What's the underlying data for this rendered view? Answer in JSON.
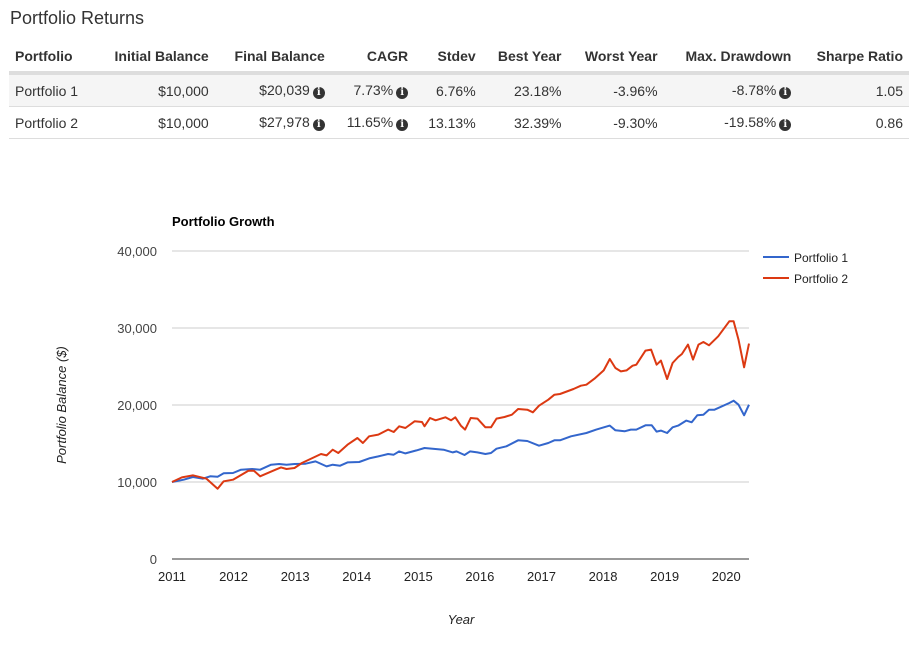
{
  "title": "Portfolio Returns",
  "table": {
    "headers": [
      "Portfolio",
      "Initial Balance",
      "Final Balance",
      "CAGR",
      "Stdev",
      "Best Year",
      "Worst Year",
      "Max. Drawdown",
      "Sharpe Ratio"
    ],
    "rows": [
      [
        "Portfolio 1",
        "$10,000",
        "$20,039",
        "7.73%",
        "6.76%",
        "23.18%",
        "-3.96%",
        "-8.78%",
        "1.05"
      ],
      [
        "Portfolio 2",
        "$10,000",
        "$27,978",
        "11.65%",
        "13.13%",
        "32.39%",
        "-9.30%",
        "-19.58%",
        "0.86"
      ]
    ],
    "info_icon": "info-circle-icon"
  },
  "chart_data": {
    "type": "line",
    "title": "Portfolio Growth",
    "xlabel": "Year",
    "ylabel": "Portfolio Balance ($)",
    "xlim": [
      2011,
      2020.37
    ],
    "ylim": [
      0,
      40000
    ],
    "x_ticks": [
      "2011",
      "2012",
      "2013",
      "2014",
      "2015",
      "2016",
      "2017",
      "2018",
      "2019",
      "2020"
    ],
    "y_ticks": [
      "0",
      "10,000",
      "20,000",
      "30,000",
      "40,000"
    ],
    "grid": true,
    "legend": "right",
    "series": [
      {
        "name": "Portfolio 1",
        "color": "#3366cc",
        "points": [
          [
            2011.0,
            10000
          ],
          [
            2011.19,
            10300
          ],
          [
            2011.34,
            10650
          ],
          [
            2011.5,
            10430
          ],
          [
            2011.62,
            10740
          ],
          [
            2011.74,
            10690
          ],
          [
            2011.84,
            11130
          ],
          [
            2011.99,
            11170
          ],
          [
            2012.12,
            11600
          ],
          [
            2012.3,
            11690
          ],
          [
            2012.43,
            11600
          ],
          [
            2012.61,
            12250
          ],
          [
            2012.74,
            12340
          ],
          [
            2012.86,
            12250
          ],
          [
            2012.99,
            12340
          ],
          [
            2013.17,
            12380
          ],
          [
            2013.33,
            12680
          ],
          [
            2013.51,
            12030
          ],
          [
            2013.61,
            12250
          ],
          [
            2013.73,
            12120
          ],
          [
            2013.85,
            12550
          ],
          [
            2014.04,
            12600
          ],
          [
            2014.2,
            13070
          ],
          [
            2014.35,
            13330
          ],
          [
            2014.51,
            13640
          ],
          [
            2014.6,
            13550
          ],
          [
            2014.69,
            13980
          ],
          [
            2014.79,
            13720
          ],
          [
            2014.97,
            14110
          ],
          [
            2015.1,
            14420
          ],
          [
            2015.41,
            14200
          ],
          [
            2015.56,
            13850
          ],
          [
            2015.62,
            13980
          ],
          [
            2015.75,
            13510
          ],
          [
            2015.84,
            13980
          ],
          [
            2015.96,
            13850
          ],
          [
            2016.09,
            13640
          ],
          [
            2016.18,
            13770
          ],
          [
            2016.27,
            14330
          ],
          [
            2016.43,
            14630
          ],
          [
            2016.62,
            15410
          ],
          [
            2016.77,
            15320
          ],
          [
            2016.96,
            14720
          ],
          [
            2017.11,
            15060
          ],
          [
            2017.21,
            15410
          ],
          [
            2017.3,
            15410
          ],
          [
            2017.48,
            15930
          ],
          [
            2017.73,
            16360
          ],
          [
            2017.89,
            16800
          ],
          [
            2018.11,
            17320
          ],
          [
            2018.2,
            16710
          ],
          [
            2018.35,
            16580
          ],
          [
            2018.45,
            16800
          ],
          [
            2018.54,
            16800
          ],
          [
            2018.69,
            17360
          ],
          [
            2018.79,
            17360
          ],
          [
            2018.87,
            16540
          ],
          [
            2018.94,
            16670
          ],
          [
            2019.04,
            16360
          ],
          [
            2019.13,
            17100
          ],
          [
            2019.22,
            17320
          ],
          [
            2019.35,
            17970
          ],
          [
            2019.44,
            17750
          ],
          [
            2019.53,
            18660
          ],
          [
            2019.63,
            18740
          ],
          [
            2019.72,
            19390
          ],
          [
            2019.81,
            19390
          ],
          [
            2020.05,
            20260
          ],
          [
            2020.12,
            20560
          ],
          [
            2020.2,
            20040
          ],
          [
            2020.29,
            18660
          ],
          [
            2020.37,
            20039
          ]
        ]
      },
      {
        "name": "Portfolio 2",
        "color": "#dc3912",
        "points": [
          [
            2011.0,
            10000
          ],
          [
            2011.16,
            10600
          ],
          [
            2011.34,
            10870
          ],
          [
            2011.56,
            10430
          ],
          [
            2011.74,
            9130
          ],
          [
            2011.84,
            10090
          ],
          [
            2011.99,
            10300
          ],
          [
            2012.24,
            11470
          ],
          [
            2012.33,
            11470
          ],
          [
            2012.43,
            10740
          ],
          [
            2012.68,
            11600
          ],
          [
            2012.77,
            11900
          ],
          [
            2012.86,
            11690
          ],
          [
            2012.99,
            11820
          ],
          [
            2013.11,
            12470
          ],
          [
            2013.42,
            13640
          ],
          [
            2013.51,
            13460
          ],
          [
            2013.61,
            14200
          ],
          [
            2013.7,
            13770
          ],
          [
            2013.85,
            14850
          ],
          [
            2014.01,
            15710
          ],
          [
            2014.1,
            15060
          ],
          [
            2014.2,
            15930
          ],
          [
            2014.35,
            16150
          ],
          [
            2014.51,
            16800
          ],
          [
            2014.6,
            16490
          ],
          [
            2014.69,
            17230
          ],
          [
            2014.79,
            17010
          ],
          [
            2014.94,
            17880
          ],
          [
            2015.06,
            17790
          ],
          [
            2015.1,
            17230
          ],
          [
            2015.19,
            18310
          ],
          [
            2015.28,
            18010
          ],
          [
            2015.44,
            18400
          ],
          [
            2015.53,
            18010
          ],
          [
            2015.6,
            18400
          ],
          [
            2015.69,
            17320
          ],
          [
            2015.76,
            16800
          ],
          [
            2015.85,
            18310
          ],
          [
            2015.96,
            18230
          ],
          [
            2016.09,
            17100
          ],
          [
            2016.18,
            17100
          ],
          [
            2016.27,
            18230
          ],
          [
            2016.4,
            18440
          ],
          [
            2016.52,
            18740
          ],
          [
            2016.62,
            19480
          ],
          [
            2016.77,
            19390
          ],
          [
            2016.86,
            19050
          ],
          [
            2016.96,
            19910
          ],
          [
            2017.11,
            20690
          ],
          [
            2017.21,
            21340
          ],
          [
            2017.3,
            21430
          ],
          [
            2017.52,
            22080
          ],
          [
            2017.64,
            22510
          ],
          [
            2017.73,
            22640
          ],
          [
            2017.86,
            23420
          ],
          [
            2018.01,
            24500
          ],
          [
            2018.11,
            25970
          ],
          [
            2018.2,
            24810
          ],
          [
            2018.29,
            24370
          ],
          [
            2018.38,
            24500
          ],
          [
            2018.48,
            25110
          ],
          [
            2018.54,
            25240
          ],
          [
            2018.69,
            27060
          ],
          [
            2018.78,
            27190
          ],
          [
            2018.87,
            25240
          ],
          [
            2018.94,
            25760
          ],
          [
            2019.04,
            23380
          ],
          [
            2019.13,
            25450
          ],
          [
            2019.22,
            26230
          ],
          [
            2019.28,
            26620
          ],
          [
            2019.38,
            27840
          ],
          [
            2019.46,
            25890
          ],
          [
            2019.55,
            27840
          ],
          [
            2019.63,
            28180
          ],
          [
            2019.72,
            27750
          ],
          [
            2019.87,
            28920
          ],
          [
            2020.05,
            30870
          ],
          [
            2020.12,
            30870
          ],
          [
            2020.2,
            28490
          ],
          [
            2020.29,
            24890
          ],
          [
            2020.37,
            27978
          ]
        ]
      }
    ]
  }
}
